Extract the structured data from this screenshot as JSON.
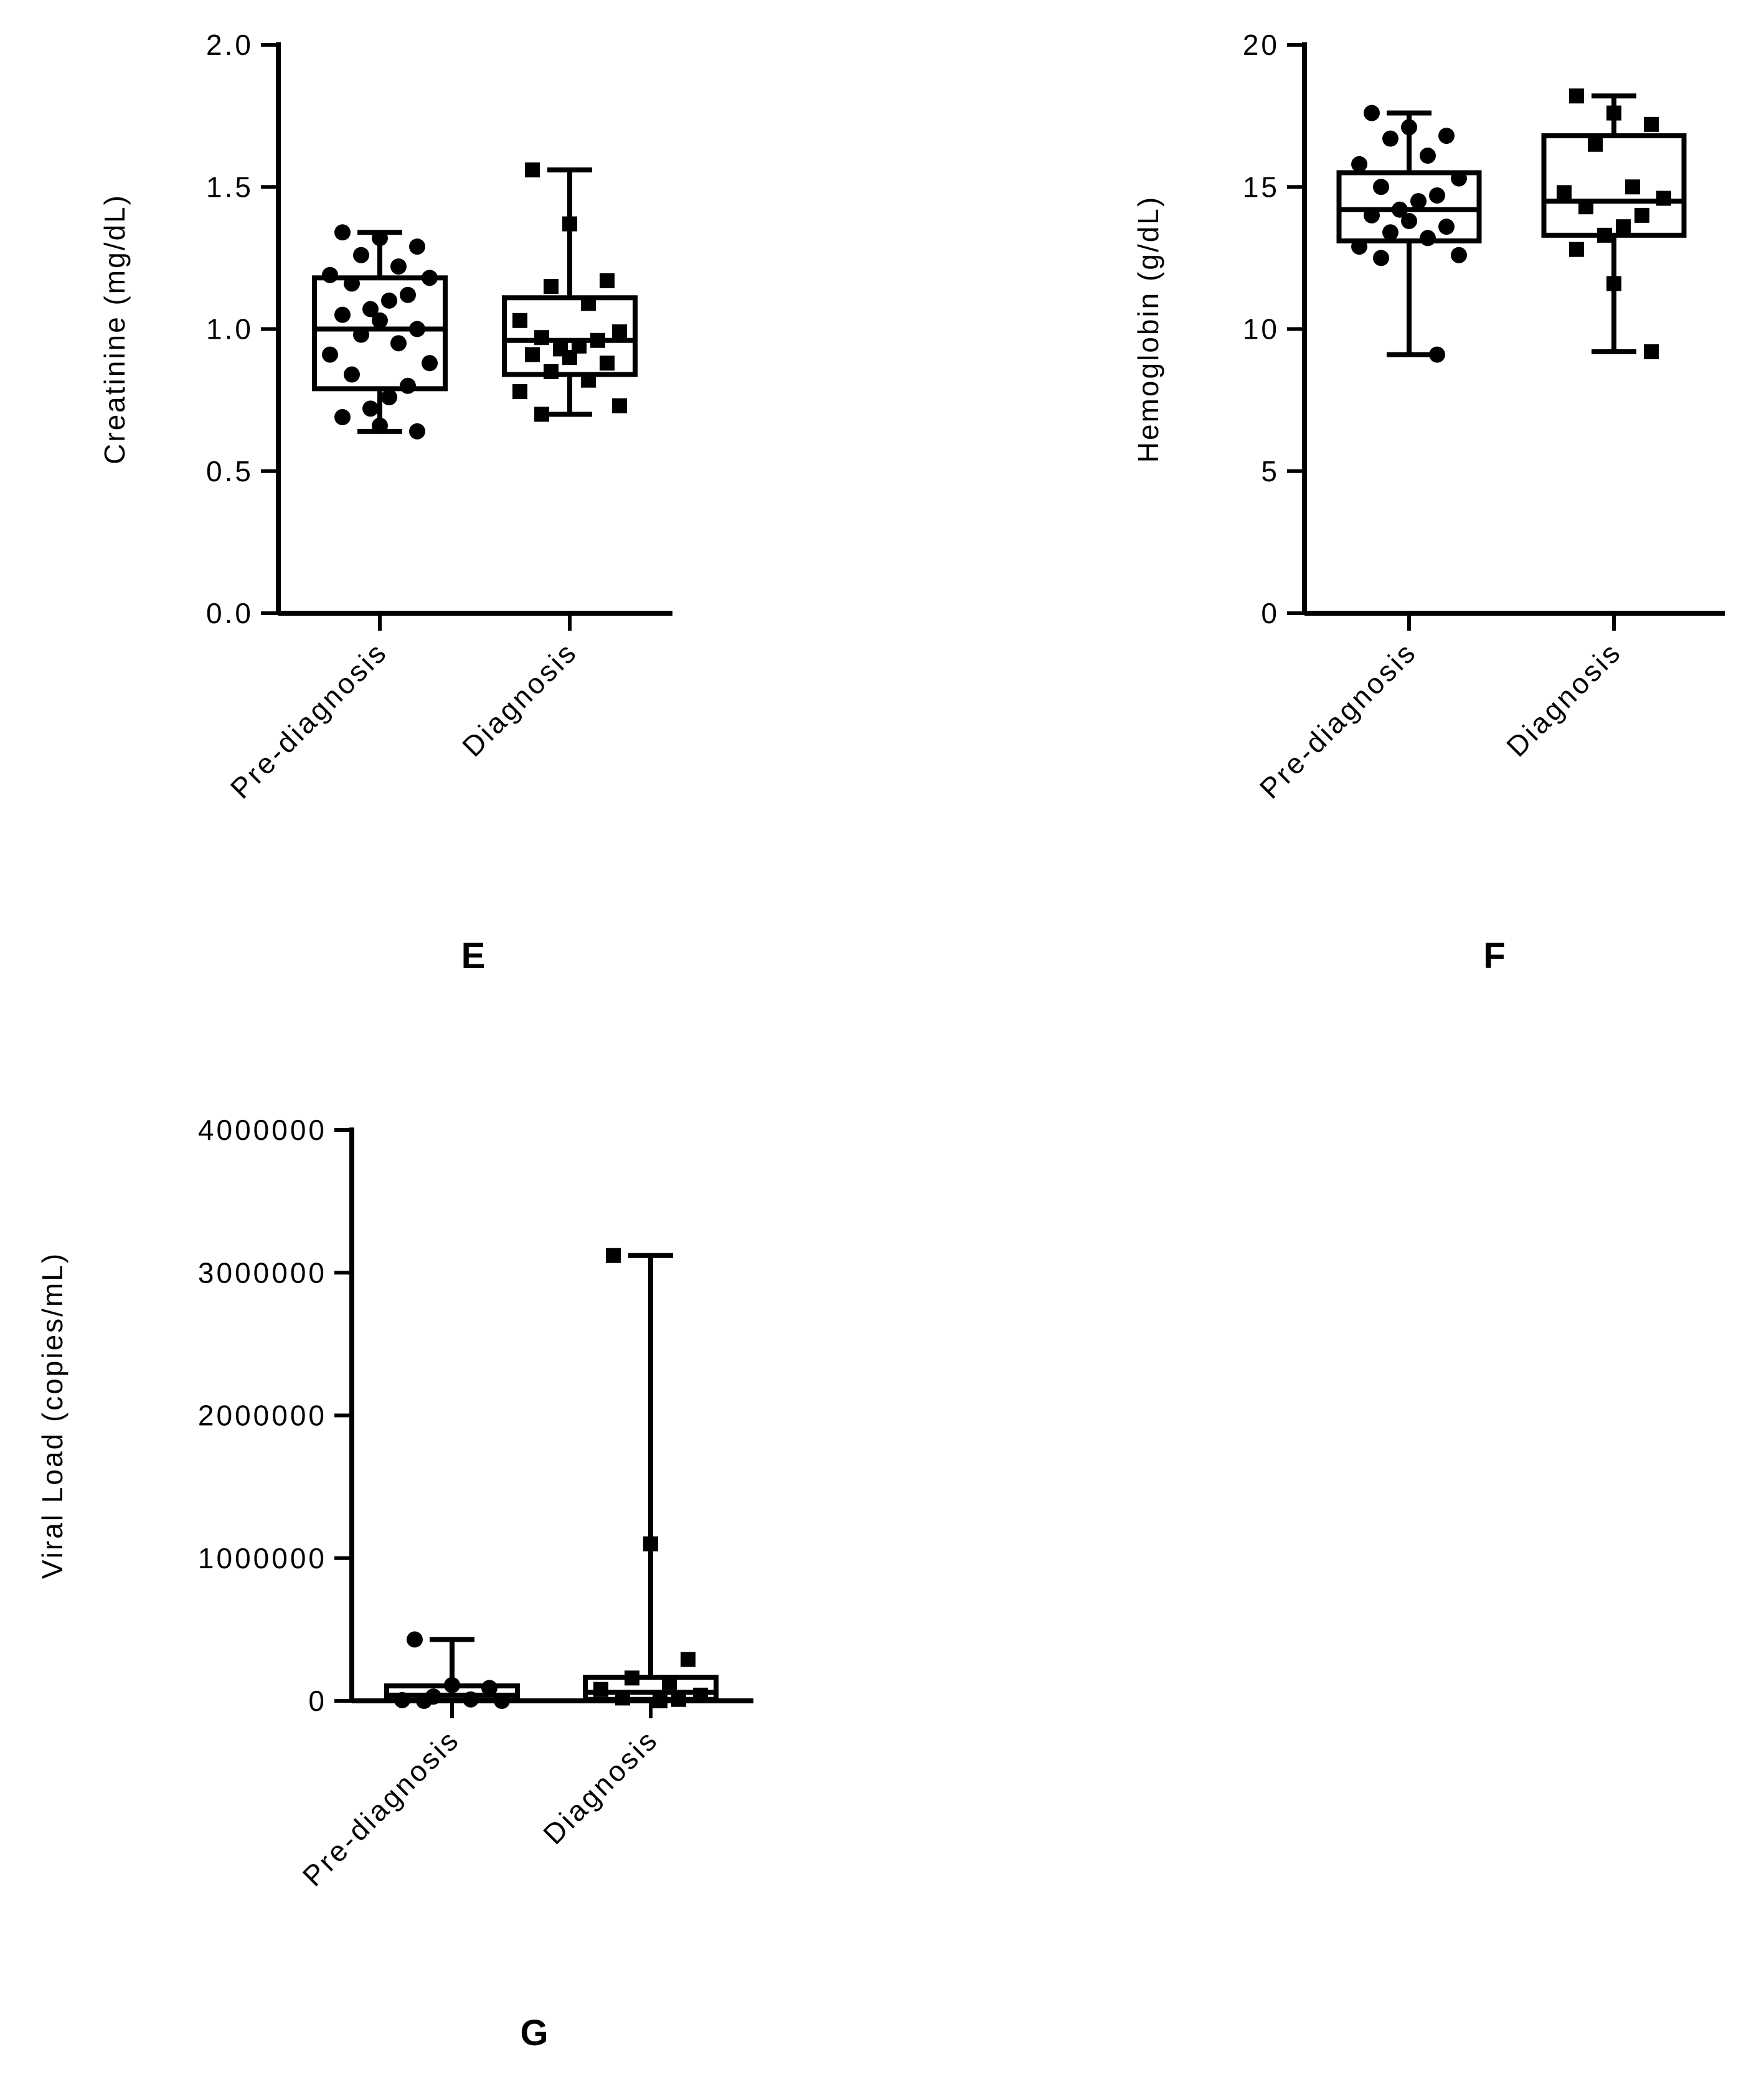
{
  "chart_data": [
    {
      "type": "box",
      "panel_label": "E",
      "title": "",
      "xlabel": "",
      "ylabel": "Creatinine (mg/dL)",
      "ylim": [
        0,
        2.0
      ],
      "yticks": [
        "0.0",
        "0.5",
        "1.0",
        "1.5",
        "2.0"
      ],
      "ytick_values": [
        0,
        0.5,
        1.0,
        1.5,
        2.0
      ],
      "categories": [
        "Pre-diagnosis",
        "Diagnosis"
      ],
      "grid": false,
      "legend": "none",
      "color": "#000000",
      "groups": [
        {
          "category": "Pre-diagnosis",
          "marker": "circle",
          "min": 0.64,
          "q1": 0.79,
          "median": 1.0,
          "q3": 1.18,
          "max": 1.34,
          "points": [
            1.34,
            1.32,
            1.29,
            1.26,
            1.22,
            1.19,
            1.18,
            1.16,
            1.12,
            1.1,
            1.07,
            1.05,
            1.03,
            1.0,
            0.98,
            0.95,
            0.91,
            0.88,
            0.84,
            0.8,
            0.76,
            0.72,
            0.69,
            0.66,
            0.64
          ]
        },
        {
          "category": "Diagnosis",
          "marker": "square",
          "min": 0.7,
          "q1": 0.84,
          "median": 0.96,
          "q3": 1.11,
          "max": 1.56,
          "points": [
            1.56,
            1.37,
            1.17,
            1.15,
            1.09,
            1.03,
            0.99,
            0.97,
            0.96,
            0.94,
            0.93,
            0.91,
            0.9,
            0.88,
            0.85,
            0.82,
            0.78,
            0.73,
            0.7
          ]
        }
      ]
    },
    {
      "type": "box",
      "panel_label": "F",
      "title": "",
      "xlabel": "",
      "ylabel": "Hemoglobin (g/dL)",
      "ylim": [
        0,
        20
      ],
      "yticks": [
        "0",
        "5",
        "10",
        "15",
        "20"
      ],
      "ytick_values": [
        0,
        5,
        10,
        15,
        20
      ],
      "categories": [
        "Pre-diagnosis",
        "Diagnosis"
      ],
      "grid": false,
      "legend": "none",
      "color": "#000000",
      "groups": [
        {
          "category": "Pre-diagnosis",
          "marker": "circle",
          "min": 9.1,
          "q1": 13.1,
          "median": 14.2,
          "q3": 15.5,
          "max": 17.6,
          "points": [
            17.6,
            17.1,
            16.8,
            16.7,
            16.1,
            15.8,
            15.3,
            15.0,
            14.7,
            14.5,
            14.2,
            14.0,
            13.8,
            13.6,
            13.4,
            13.2,
            12.9,
            12.6,
            12.5,
            9.1
          ]
        },
        {
          "category": "Diagnosis",
          "marker": "square",
          "min": 9.2,
          "q1": 13.3,
          "median": 14.5,
          "q3": 16.8,
          "max": 18.2,
          "points": [
            18.2,
            17.6,
            17.2,
            16.5,
            15.0,
            14.8,
            14.6,
            14.3,
            14.0,
            13.6,
            13.3,
            12.8,
            11.6,
            9.2
          ]
        }
      ]
    },
    {
      "type": "box",
      "panel_label": "G",
      "title": "",
      "xlabel": "",
      "ylabel": "Viral Load (copies/mL)",
      "ylim": [
        0,
        4000000
      ],
      "yticks": [
        "0",
        "1000000",
        "2000000",
        "3000000",
        "4000000"
      ],
      "ytick_values": [
        0,
        1000000,
        2000000,
        3000000,
        4000000
      ],
      "categories": [
        "Pre-diagnosis",
        "Diagnosis"
      ],
      "grid": false,
      "legend": "none",
      "color": "#000000",
      "groups": [
        {
          "category": "Pre-diagnosis",
          "marker": "circle",
          "min": 0,
          "q1": 5000,
          "median": 40000,
          "q3": 105000,
          "max": 430000,
          "points": [
            430000,
            110000,
            90000,
            30000,
            10000,
            5000,
            0,
            0
          ]
        },
        {
          "category": "Diagnosis",
          "marker": "square",
          "min": 0,
          "q1": 10000,
          "median": 60000,
          "q3": 165000,
          "max": 3120000,
          "points": [
            3120000,
            1100000,
            290000,
            160000,
            130000,
            80000,
            40000,
            20000,
            10000,
            0
          ]
        }
      ]
    }
  ]
}
